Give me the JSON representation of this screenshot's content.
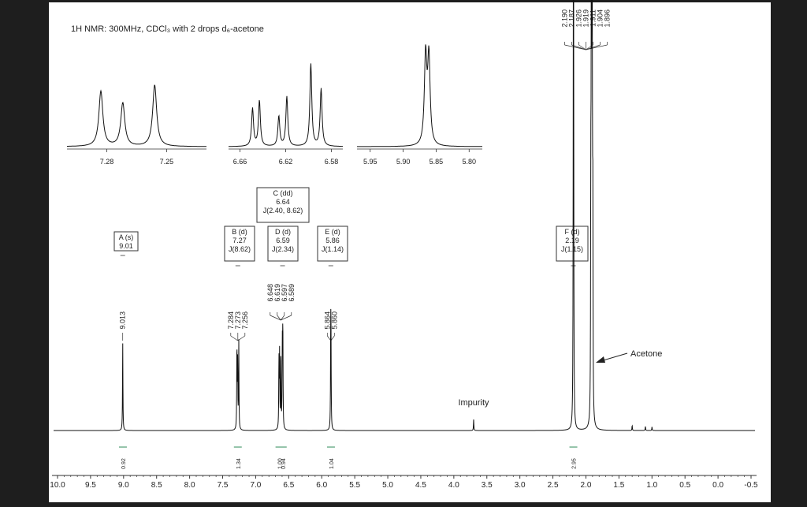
{
  "header": {
    "title": "1H NMR:  300MHz, CDCl₃ with 2 drops d₆-acetone"
  },
  "chart_data": {
    "type": "line",
    "xlim": [
      10.0,
      -0.5
    ],
    "x_ticks": [
      "10.0",
      "9.5",
      "9.0",
      "8.5",
      "8.0",
      "7.5",
      "7.0",
      "6.5",
      "6.0",
      "5.5",
      "5.0",
      "4.5",
      "4.0",
      "3.5",
      "3.0",
      "2.5",
      "2.0",
      "1.5",
      "1.0",
      "0.5",
      "0.0",
      "-0.5"
    ],
    "peaks": [
      {
        "ppm": 9.013,
        "height": 0.24
      },
      {
        "ppm": 7.284,
        "height": 0.23
      },
      {
        "ppm": 7.273,
        "height": 0.18
      },
      {
        "ppm": 7.256,
        "height": 0.24
      },
      {
        "ppm": 6.648,
        "height": 0.19
      },
      {
        "ppm": 6.638,
        "height": 0.2
      },
      {
        "ppm": 6.619,
        "height": 0.21
      },
      {
        "ppm": 6.597,
        "height": 0.22
      },
      {
        "ppm": 6.589,
        "height": 0.28
      },
      {
        "ppm": 5.864,
        "height": 0.22
      },
      {
        "ppm": 5.86,
        "height": 0.22
      },
      {
        "ppm": 3.7,
        "height": 0.03
      },
      {
        "ppm": 2.19,
        "height": 0.96
      },
      {
        "ppm": 2.187,
        "height": 0.93
      },
      {
        "ppm": 1.926,
        "height": 0.55
      },
      {
        "ppm": 1.919,
        "height": 0.95
      },
      {
        "ppm": 1.911,
        "height": 1.0
      },
      {
        "ppm": 1.904,
        "height": 0.95
      },
      {
        "ppm": 1.896,
        "height": 0.55
      },
      {
        "ppm": 1.3,
        "height": 0.014
      },
      {
        "ppm": 1.1,
        "height": 0.012
      },
      {
        "ppm": 1.0,
        "height": 0.01
      }
    ],
    "peak_labels": [
      {
        "group": [
          "9.013"
        ],
        "ppm": 9.013
      },
      {
        "group": [
          "7.284",
          "7.273",
          "7.256"
        ],
        "ppm": 7.27
      },
      {
        "group": [
          "6.648",
          "6.619",
          "6.597",
          "6.589"
        ],
        "ppm": 6.62
      },
      {
        "group": [
          "5.864",
          "5.860"
        ],
        "ppm": 5.862
      },
      {
        "group": [
          "2.190",
          "2.187",
          "1.926",
          "1.919",
          "1.911",
          "1.904",
          "1.896"
        ],
        "ppm": 2.0
      }
    ],
    "multiplets": [
      {
        "name": "A (s)",
        "shift": "9.01",
        "j": "",
        "ppm": 9.013
      },
      {
        "name": "B (d)",
        "shift": "7.27",
        "j": "J(8.62)",
        "ppm": 7.27
      },
      {
        "name": "C (dd)",
        "shift": "6.64",
        "j": "J(2.40, 8.62)",
        "ppm": 6.635
      },
      {
        "name": "D (d)",
        "shift": "6.59",
        "j": "J(2.34)",
        "ppm": 6.593
      },
      {
        "name": "E (d)",
        "shift": "5.86",
        "j": "J(1.14)",
        "ppm": 5.862
      },
      {
        "name": "F (d)",
        "shift": "2.19",
        "j": "J(1.15)",
        "ppm": 2.19
      }
    ],
    "integrals": [
      {
        "ppm": 9.01,
        "value": "0.92"
      },
      {
        "ppm": 7.27,
        "value": "1.34"
      },
      {
        "ppm": 6.64,
        "value": "1.00"
      },
      {
        "ppm": 6.59,
        "value": "0.94"
      },
      {
        "ppm": 5.86,
        "value": "1.04"
      },
      {
        "ppm": 2.19,
        "value": "2.95"
      }
    ],
    "annotations": [
      {
        "text": "Impurity",
        "ppm": 3.7
      },
      {
        "text": "Acetone",
        "ppm": 1.911
      }
    ],
    "insets": [
      {
        "ticks": [
          "7.28",
          "7.25"
        ],
        "range": [
          7.3,
          7.23
        ]
      },
      {
        "ticks": [
          "6.66",
          "6.62",
          "6.58"
        ],
        "range": [
          6.67,
          6.57
        ]
      },
      {
        "ticks": [
          "5.95",
          "5.90",
          "5.85",
          "5.80"
        ],
        "range": [
          5.97,
          5.78
        ]
      }
    ]
  }
}
